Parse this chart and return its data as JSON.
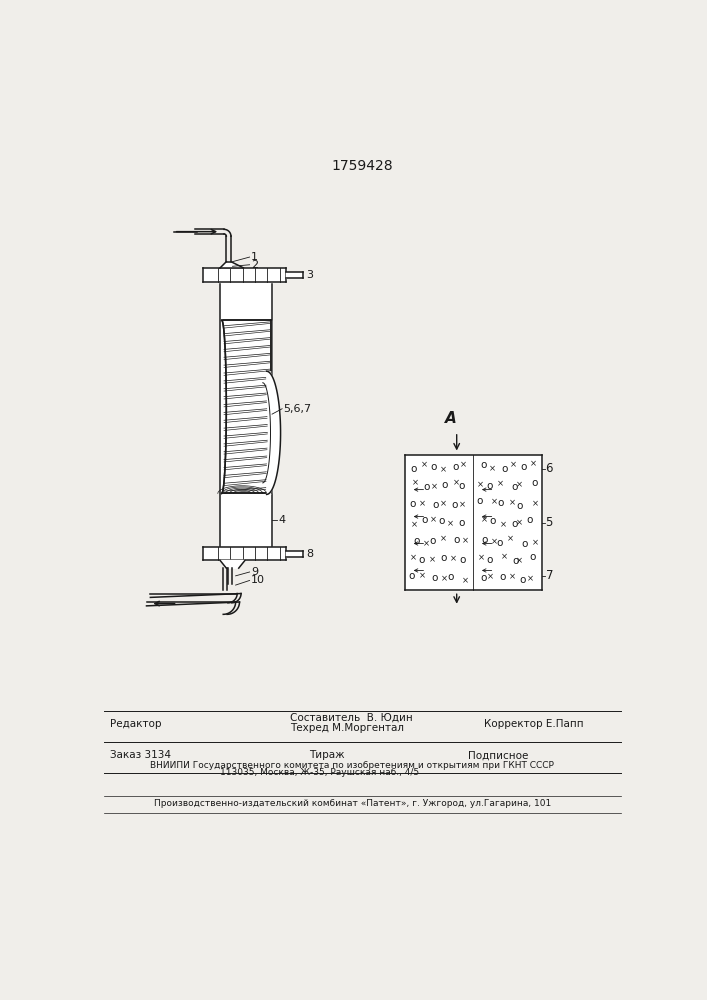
{
  "patent_number": "1759428",
  "bg_color": "#f0eeea",
  "line_color": "#1a1a1a",
  "title_fontsize": 10,
  "body_fontsize": 7.5,
  "small_fontsize": 6.5,
  "footer": {
    "line1_left": "Редактор",
    "line1_center1": "Составитель  В. Юдин",
    "line1_center2": "Техред М.Моргентал",
    "line1_right": "Корректор Е.Папп",
    "line2_left": "Заказ 3134",
    "line2_center": "Тираж",
    "line2_right": "Подписное",
    "line3": "ВНИИПИ Государственного комитета по изобретениям и открытиям при ГКНТ СССР",
    "line4": "113035, Москва, Ж-35, Раушская наб., 4/5",
    "line5": "Производственно-издательский комбинат «Патент», г. Ужгород, ул.Гагарина, 101"
  }
}
